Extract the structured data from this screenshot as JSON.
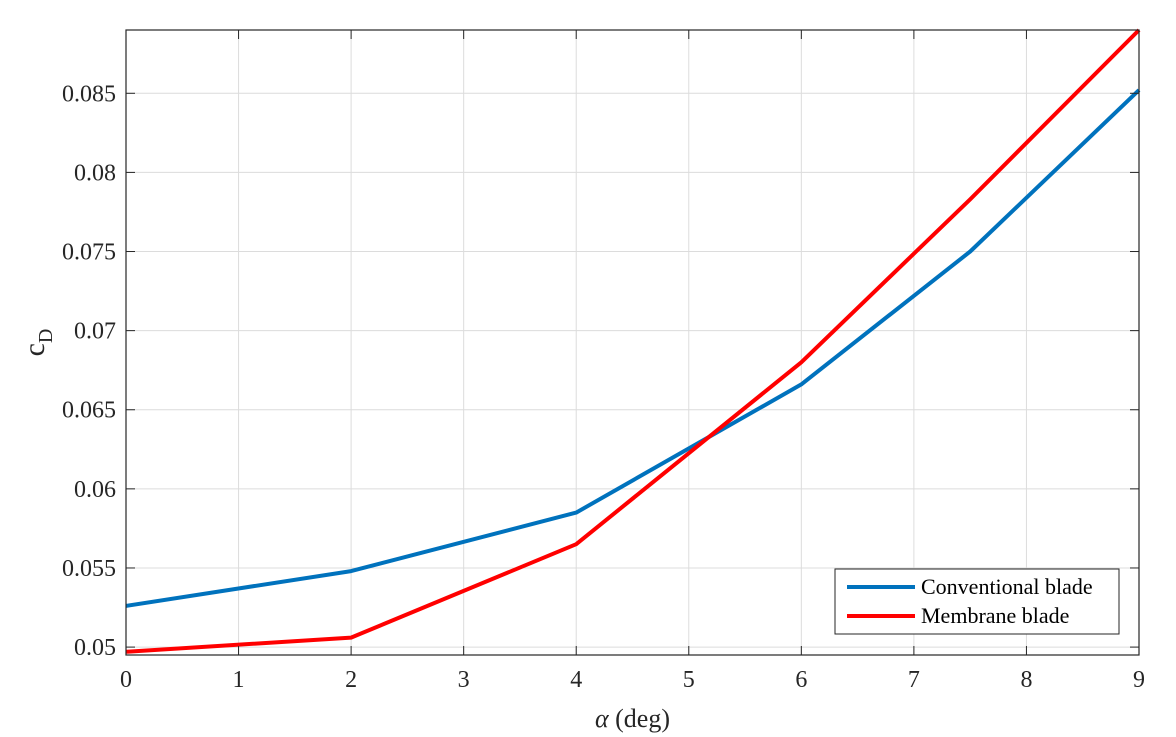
{
  "chart_data": {
    "type": "line",
    "xlabel_symbol": "α",
    "xlabel_unit": " (deg)",
    "ylabel_main": "c",
    "ylabel_sub": "D",
    "xlim": [
      0,
      9
    ],
    "ylim": [
      0.0495,
      0.089
    ],
    "xticks": [
      0,
      1,
      2,
      3,
      4,
      5,
      6,
      7,
      8,
      9
    ],
    "xtick_labels": [
      "0",
      "1",
      "2",
      "3",
      "4",
      "5",
      "6",
      "7",
      "8",
      "9"
    ],
    "yticks": [
      0.05,
      0.055,
      0.06,
      0.065,
      0.07,
      0.075,
      0.08,
      0.085
    ],
    "ytick_labels": [
      "0.05",
      "0.055",
      "0.06",
      "0.065",
      "0.07",
      "0.075",
      "0.08",
      "0.085"
    ],
    "grid": true,
    "legend_position": "bottom-right",
    "series": [
      {
        "name": "Conventional blade",
        "color": "#0072BD",
        "x": [
          0,
          2,
          4,
          6,
          7.5,
          9
        ],
        "y": [
          0.0526,
          0.0548,
          0.0585,
          0.0666,
          0.075,
          0.0852
        ]
      },
      {
        "name": "Membrane blade",
        "color": "#FF0000",
        "x": [
          0,
          2,
          4,
          6,
          7.5,
          9
        ],
        "y": [
          0.0497,
          0.0506,
          0.0565,
          0.068,
          0.0783,
          0.089
        ]
      }
    ]
  }
}
